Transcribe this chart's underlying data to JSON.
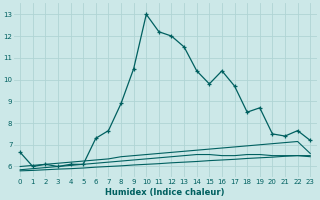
{
  "xlabel": "Humidex (Indice chaleur)",
  "xlim": [
    -0.5,
    23.5
  ],
  "ylim": [
    5.5,
    13.5
  ],
  "xticks": [
    0,
    1,
    2,
    3,
    4,
    5,
    6,
    7,
    8,
    9,
    10,
    11,
    12,
    13,
    14,
    15,
    16,
    17,
    18,
    19,
    20,
    21,
    22,
    23
  ],
  "yticks": [
    6,
    7,
    8,
    9,
    10,
    11,
    12,
    13
  ],
  "bg_color": "#cce8e8",
  "line_color": "#006060",
  "grid_color": "#b0d4d4",
  "main_x": [
    0,
    1,
    2,
    3,
    4,
    5,
    6,
    7,
    8,
    9,
    10,
    11,
    12,
    13,
    14,
    15,
    16,
    17,
    18,
    19,
    20,
    21,
    22,
    23
  ],
  "main_y": [
    6.65,
    6.0,
    6.1,
    6.0,
    6.1,
    6.1,
    7.3,
    7.65,
    8.9,
    10.5,
    13.0,
    12.2,
    12.0,
    11.5,
    10.4,
    9.8,
    10.4,
    9.7,
    8.5,
    8.7,
    7.5,
    7.4,
    7.65,
    7.2
  ],
  "flat1_x": [
    0,
    1,
    2,
    3,
    4,
    5,
    6,
    7,
    8,
    9,
    10,
    11,
    12,
    13,
    14,
    15,
    16,
    17,
    18,
    19,
    20,
    21,
    22,
    23
  ],
  "flat1_y": [
    6.0,
    6.05,
    6.1,
    6.15,
    6.2,
    6.25,
    6.3,
    6.35,
    6.45,
    6.5,
    6.55,
    6.6,
    6.65,
    6.7,
    6.75,
    6.8,
    6.85,
    6.9,
    6.95,
    7.0,
    7.05,
    7.1,
    7.15,
    6.6
  ],
  "flat2_x": [
    0,
    1,
    2,
    3,
    4,
    5,
    6,
    7,
    8,
    9,
    10,
    11,
    12,
    13,
    14,
    15,
    16,
    17,
    18,
    19,
    20,
    21,
    22,
    23
  ],
  "flat2_y": [
    5.85,
    5.9,
    5.95,
    6.0,
    6.05,
    6.1,
    6.15,
    6.2,
    6.25,
    6.3,
    6.35,
    6.4,
    6.45,
    6.5,
    6.55,
    6.55,
    6.5,
    6.5,
    6.55,
    6.55,
    6.5,
    6.5,
    6.5,
    6.45
  ],
  "flat3_x": [
    0,
    1,
    2,
    3,
    4,
    5,
    6,
    7,
    8,
    9,
    10,
    11,
    12,
    13,
    14,
    15,
    16,
    17,
    18,
    19,
    20,
    21,
    22,
    23
  ],
  "flat3_y": [
    5.8,
    5.82,
    5.85,
    5.88,
    5.9,
    5.93,
    5.97,
    6.0,
    6.03,
    6.07,
    6.1,
    6.13,
    6.17,
    6.2,
    6.23,
    6.27,
    6.3,
    6.33,
    6.37,
    6.4,
    6.43,
    6.47,
    6.5,
    6.5
  ]
}
